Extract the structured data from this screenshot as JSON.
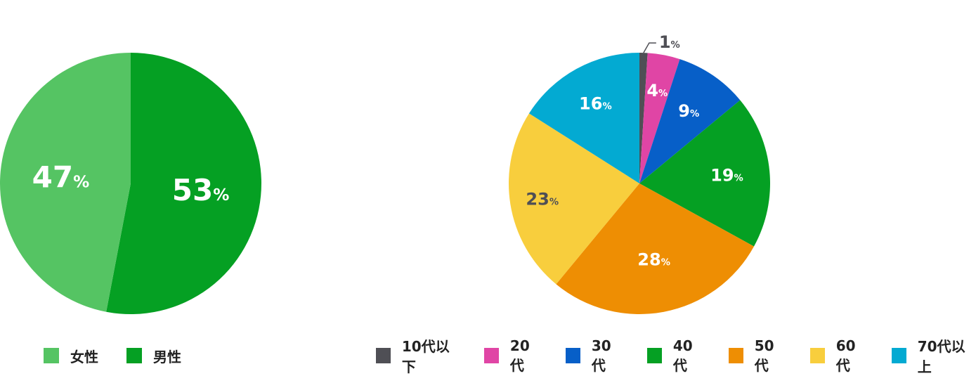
{
  "chart_data": [
    {
      "type": "pie",
      "slices": [
        {
          "label": "男性",
          "value": 53,
          "color": "#05a023",
          "text_color": "#ffffff"
        },
        {
          "label": "女性",
          "value": 47,
          "color": "#55c463",
          "text_color": "#ffffff"
        }
      ],
      "unit": "%",
      "legend": [
        "女性",
        "男性"
      ],
      "legend_position": "bottom-left"
    },
    {
      "type": "pie",
      "slices": [
        {
          "label": "10代以下",
          "value": 1,
          "color": "#4f4f55",
          "text_color": "#4f4f55"
        },
        {
          "label": "20代",
          "value": 4,
          "color": "#e045a5",
          "text_color": "#ffffff"
        },
        {
          "label": "30代",
          "value": 9,
          "color": "#075fc8",
          "text_color": "#ffffff"
        },
        {
          "label": "40代",
          "value": 19,
          "color": "#05a023",
          "text_color": "#ffffff"
        },
        {
          "label": "50代",
          "value": 28,
          "color": "#ee8e03",
          "text_color": "#ffffff"
        },
        {
          "label": "60代",
          "value": 23,
          "color": "#f8ce3d",
          "text_color": "#4f4f55"
        },
        {
          "label": "70代以上",
          "value": 16,
          "color": "#03aad2",
          "text_color": "#ffffff"
        }
      ],
      "unit": "%",
      "legend": [
        "10代以下",
        "20代",
        "30代",
        "40代",
        "50代",
        "60代",
        "70代以上"
      ],
      "legend_position": "bottom-right"
    }
  ]
}
